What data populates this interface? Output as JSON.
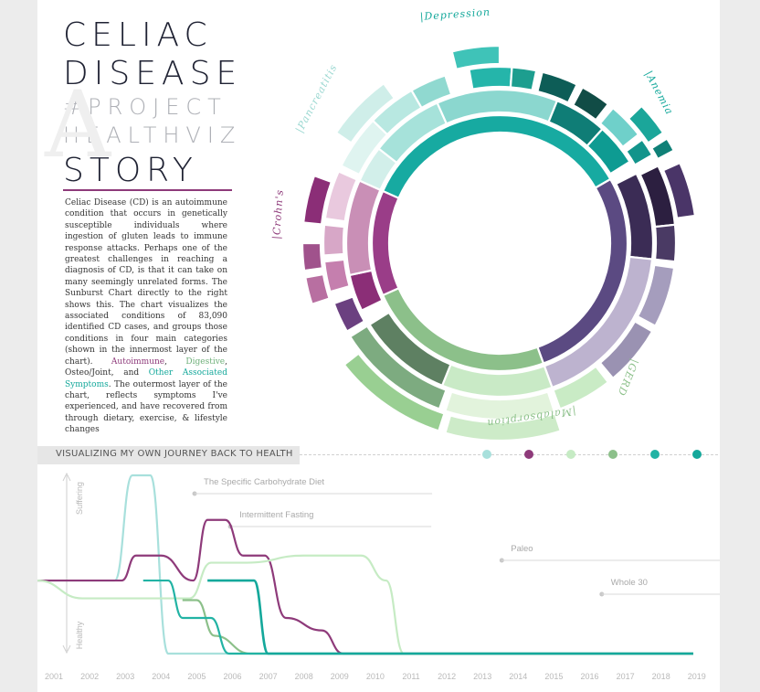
{
  "title": {
    "line1": "CELIAC",
    "line2": "DISEASE",
    "line3": "#PROJECT",
    "line4": "HEALTHVIZ",
    "line5": "STORY"
  },
  "description": {
    "part1": "Celiac Disease (CD) is an autoimmune condition that occurs in genetically susceptible individuals where ingestion of gluten leads to immune response attacks. Perhaps one of the greatest challenges in reaching a diagnosis of CD, is that it can take on many seemingly unrelated forms. The Sunburst Chart directly to the right shows this. The chart visualizes the associated conditions of 83,090 identified CD cases, and groups those conditions in four main categories (shown in the innermost layer of the chart).",
    "autoimmune": "Autoimmune",
    "sep1": ", ",
    "digestive": "Digestive",
    "sep2": ", Osteo/Joint, and ",
    "other": "Other Associated Symptoms",
    "part2": ". The outermost layer of the chart, reflects symptoms I've experienced, and have recovered from through dietary, exercise, & lifestyle changes"
  },
  "colors": {
    "autoimmune": "#8e3a7a",
    "digestive": "#8cc08a",
    "other": "#14a89b",
    "osteo": "#5b4a82"
  },
  "sunburst_labels": [
    "Depression",
    "Anemia",
    "Pancreatitis",
    "Crohn's",
    "GERD",
    "Malabsorption"
  ],
  "section_label": "VISUALIZING MY OWN JOURNEY BACK TO HEALTH",
  "chart_data": {
    "type": "line",
    "x": [
      2001,
      2002,
      2003,
      2004,
      2005,
      2006,
      2007,
      2008,
      2009,
      2010,
      2011,
      2012,
      2013,
      2014,
      2015,
      2016,
      2017,
      2018,
      2019
    ],
    "ylabel_top": "Suffering",
    "ylabel_bottom": "Healthy",
    "diet_annotations": [
      {
        "label": "The Specific Carbohydrate Diet",
        "year": 2005.4
      },
      {
        "label": "Intermittent Fasting",
        "year": 2006.4
      },
      {
        "label": "Paleo",
        "year": 2014.0
      },
      {
        "label": "Whole 30",
        "year": 2016.8
      }
    ],
    "legend_dot_colors": [
      "#a8e0dc",
      "#8e3a7a",
      "#c6ebc4",
      "#8cc08a",
      "#22b3a4",
      "#14a89b"
    ]
  }
}
